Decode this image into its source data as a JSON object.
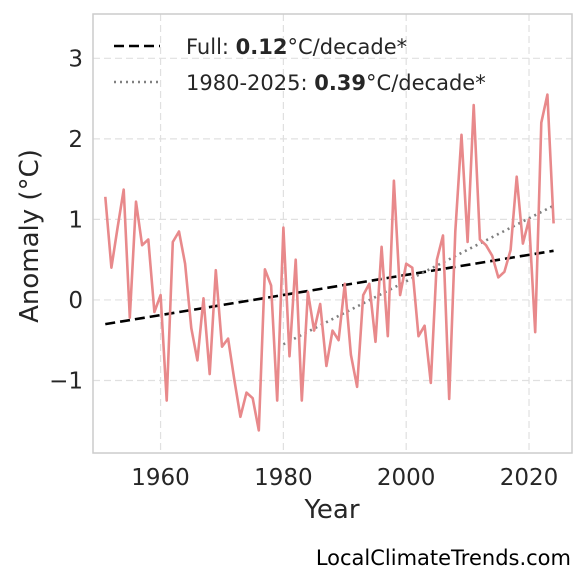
{
  "chart_data": {
    "type": "line",
    "xlabel": "Year",
    "ylabel": "Anomaly (°C)",
    "xlim": [
      1949,
      2027
    ],
    "ylim": [
      -1.9,
      3.55
    ],
    "x_ticks": [
      1960,
      1980,
      2000,
      2020
    ],
    "y_ticks": [
      -1,
      0,
      1,
      2,
      3
    ],
    "y_tick_labels": [
      "−1",
      "0",
      "1",
      "2",
      "3"
    ],
    "grid": true,
    "legend_position": "top-left",
    "colors": {
      "series": "#e8898b",
      "full_trend": "#000000",
      "recent_trend": "#808080",
      "grid": "#e0e0e0",
      "frame": "#cccccc"
    },
    "series": [
      {
        "x": [
          1951,
          1952,
          1953,
          1954,
          1955,
          1956,
          1957,
          1958,
          1959,
          1960,
          1961,
          1962,
          1963,
          1964,
          1965,
          1966,
          1967,
          1968,
          1969,
          1970,
          1971,
          1972,
          1973,
          1974,
          1975,
          1976,
          1977,
          1978,
          1979,
          1980,
          1981,
          1982,
          1983,
          1984,
          1985,
          1986,
          1987,
          1988,
          1989,
          1990,
          1991,
          1992,
          1993,
          1994,
          1995,
          1996,
          1997,
          1998,
          1999,
          2000,
          2001,
          2002,
          2003,
          2004,
          2005,
          2006,
          2007,
          2008,
          2009,
          2010,
          2011,
          2012,
          2013,
          2014,
          2015,
          2016,
          2017,
          2018,
          2019,
          2020,
          2021,
          2022,
          2023,
          2024
        ],
        "values": [
          1.28,
          0.4,
          0.9,
          1.37,
          -0.22,
          1.22,
          0.68,
          0.75,
          -0.15,
          0.06,
          -1.25,
          0.72,
          0.85,
          0.45,
          -0.35,
          -0.75,
          0.02,
          -0.92,
          0.37,
          -0.58,
          -0.48,
          -0.98,
          -1.45,
          -1.15,
          -1.22,
          -1.62,
          0.38,
          0.18,
          -1.25,
          0.9,
          -0.7,
          0.5,
          -1.25,
          0.1,
          -0.38,
          -0.05,
          -0.82,
          -0.38,
          -0.5,
          0.2,
          -0.68,
          -1.08,
          0.06,
          0.2,
          -0.52,
          0.66,
          -0.45,
          1.48,
          0.06,
          0.45,
          0.4,
          -0.45,
          -0.32,
          -1.03,
          0.5,
          0.8,
          -1.23,
          0.85,
          2.05,
          0.72,
          2.42,
          0.75,
          0.68,
          0.55,
          0.28,
          0.35,
          0.62,
          1.53,
          0.7,
          1.0,
          -0.4,
          2.2,
          2.55,
          0.95
        ]
      }
    ],
    "trends": [
      {
        "label_prefix": "Full: ",
        "label_value": "0.12",
        "label_suffix": "°C/decade*",
        "x": [
          1951,
          2024
        ],
        "y": [
          -0.3,
          0.61
        ],
        "style": "dashed"
      },
      {
        "label_prefix": "1980-2025: ",
        "label_value": "0.39",
        "label_suffix": "°C/decade*",
        "x": [
          1980,
          2024
        ],
        "y": [
          -0.55,
          1.17
        ],
        "style": "dotted"
      }
    ],
    "watermark": "LocalClimateTrends.com"
  }
}
